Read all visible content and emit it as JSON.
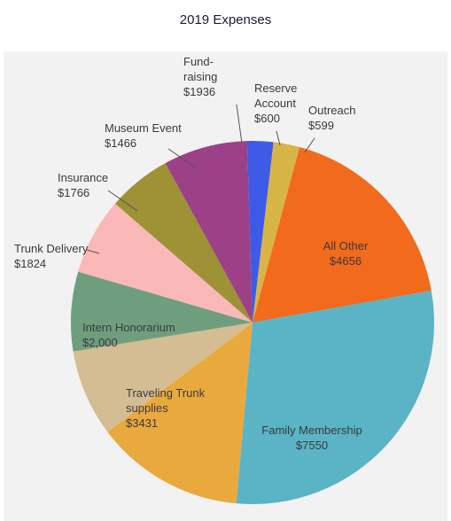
{
  "chart_data": {
    "type": "pie",
    "title": "2019 Expenses",
    "slices": [
      {
        "label": [
          "All Other"
        ],
        "amount": "$4656",
        "value": 4656,
        "color": "#f26a1b"
      },
      {
        "label": [
          "Family Membership"
        ],
        "amount": "$7550",
        "value": 7550,
        "color": "#5ab4c6"
      },
      {
        "label": [
          "Traveling Trunk",
          "supplies"
        ],
        "amount": "$3431",
        "value": 3431,
        "color": "#e9a93d"
      },
      {
        "label": [
          "Intern Honorarium"
        ],
        "amount": "$2,000",
        "value": 2000,
        "color": "#d4bd92"
      },
      {
        "label": [
          "Trunk Delivery"
        ],
        "amount": "$1824",
        "value": 1824,
        "color": "#6f9e7f"
      },
      {
        "label": [
          "Insurance"
        ],
        "amount": "$1766",
        "value": 1766,
        "color": "#fbb8b8"
      },
      {
        "label": [
          "Museum Event"
        ],
        "amount": "$1466",
        "value": 1466,
        "color": "#9d9236"
      },
      {
        "label": [
          "Fund-",
          "raising"
        ],
        "amount": "$1936",
        "value": 1936,
        "color": "#9c4187"
      },
      {
        "label": [
          "Reserve",
          "Account"
        ],
        "amount": "$600",
        "value": 600,
        "color": "#3e5be8"
      },
      {
        "label": [
          "Outreach"
        ],
        "amount": "$599",
        "value": 599,
        "color": "#d7b545"
      }
    ]
  }
}
